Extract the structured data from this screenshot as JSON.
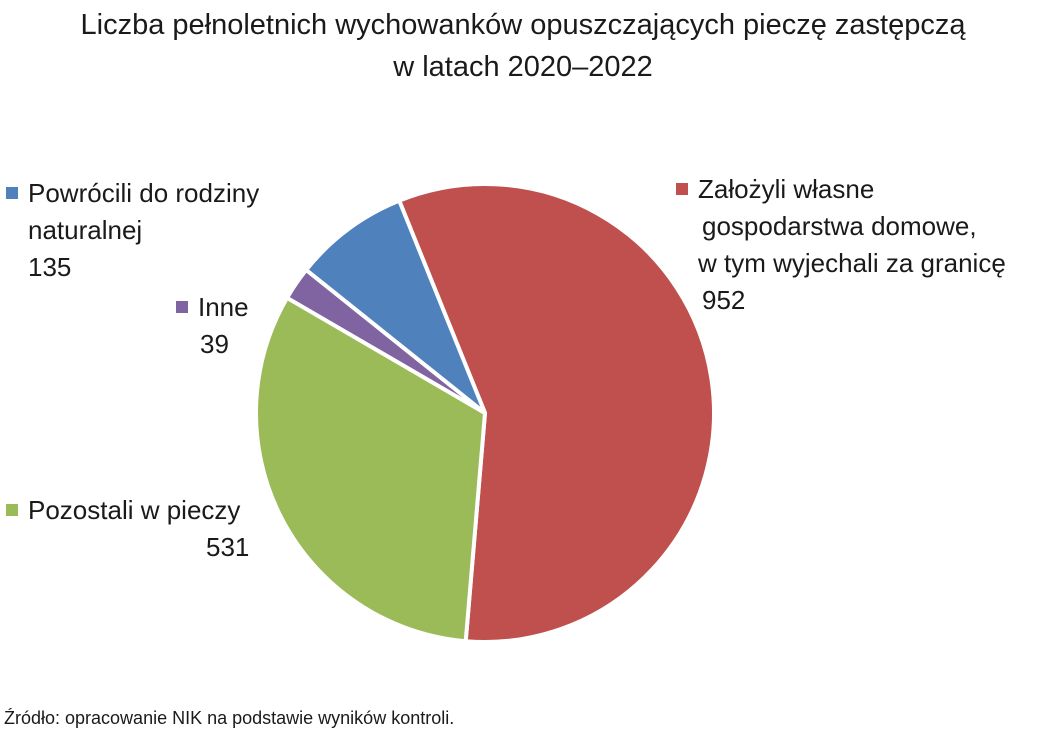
{
  "chart_data": {
    "type": "pie",
    "title_lines": [
      "Liczba pełnoletnich wychowanków opuszczających pieczę zastępczą",
      "w latach 2020–2022"
    ],
    "slices": [
      {
        "label_lines": [
          "Założyli własne",
          "gospodarstwa domowe,",
          "w tym wyjechali za granicę"
        ],
        "value": 952,
        "value_text": "952",
        "color": "#c0504d"
      },
      {
        "label_lines": [
          "Pozostali w pieczy"
        ],
        "value": 531,
        "value_text": "531",
        "color": "#9bbb59"
      },
      {
        "label_lines": [
          "Inne"
        ],
        "value": 39,
        "value_text": "39",
        "color": "#8064a2"
      },
      {
        "label_lines": [
          "Powrócili do rodziny",
          "naturalnej"
        ],
        "value": 135,
        "value_text": "135",
        "color": "#4f81bd"
      }
    ],
    "legend": "labels next to slices",
    "source": "Źródło: opracowanie NIK na podstawie wyników kontroli."
  }
}
